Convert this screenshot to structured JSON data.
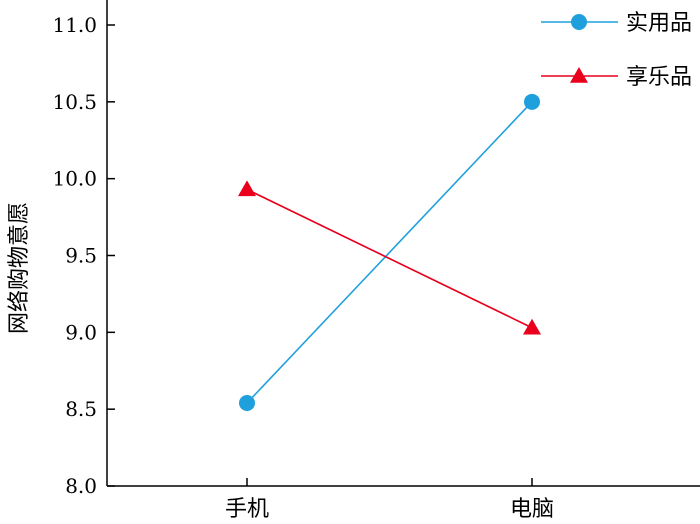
{
  "chart_data": {
    "type": "line",
    "categories": [
      "手机",
      "电脑"
    ],
    "ylabel": "网络购物意愿",
    "ylim": [
      8.0,
      11.0
    ],
    "yticks": [
      "8.0",
      "8.5",
      "9.0",
      "9.5",
      "10.0",
      "10.5",
      "11.0"
    ],
    "grid": false,
    "legend_position": "top-right",
    "series": [
      {
        "name": "实用品",
        "values": [
          8.54,
          10.5
        ],
        "color": "#1fa0dc",
        "marker": "circle"
      },
      {
        "name": "享乐品",
        "values": [
          9.93,
          9.03
        ],
        "color": "#e8001c",
        "marker": "triangle"
      }
    ]
  }
}
